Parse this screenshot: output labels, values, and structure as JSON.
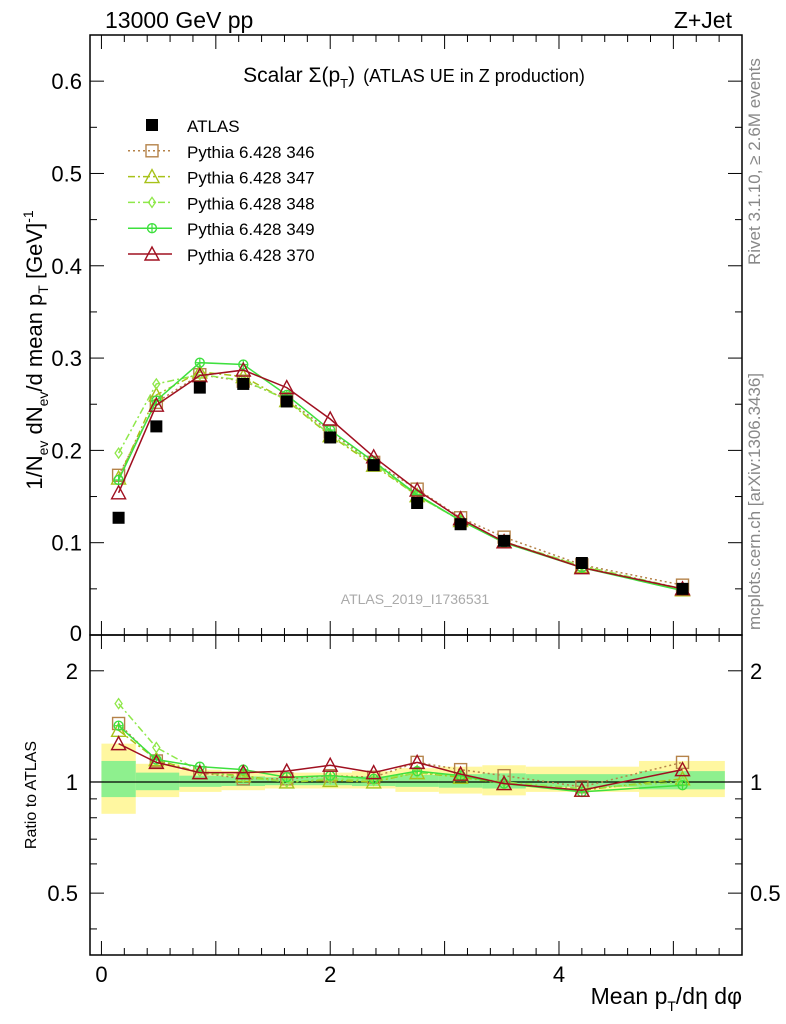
{
  "header": {
    "left": "13000 GeV pp",
    "right": "Z+Jet"
  },
  "side_text": {
    "top": "Rivet 3.1.10, ≥ 2.6M events",
    "bottom": "mcplots.cern.ch [arXiv:1306.3436]"
  },
  "watermark": "ATLAS_2019_I1736531",
  "chart_data": [
    {
      "type": "line",
      "title_main": "Scalar Σ(p",
      "title_sub": "T",
      "title_after": ")",
      "title_tail": "(ATLAS UE in Z production)",
      "ylabel": "1/N_ev dN_ev/d mean p_T [GeV]^-1",
      "ylim": [
        0,
        0.65
      ],
      "yticks": [
        0.1,
        0.2,
        0.3,
        0.4,
        0.5,
        0.6
      ],
      "yticklabels": [
        "0.1",
        "0.2",
        "0.3",
        "0.4",
        "0.5",
        "0.6"
      ],
      "y_zero_label": "0",
      "xlim": [
        -0.1,
        5.6
      ],
      "legend_position": "top-left",
      "x": [
        0.15,
        0.48,
        0.86,
        1.24,
        1.62,
        2.0,
        2.38,
        2.76,
        3.14,
        3.52,
        4.2,
        5.08
      ],
      "data": {
        "name": "ATLAS",
        "values": [
          0.127,
          0.226,
          0.268,
          0.272,
          0.253,
          0.214,
          0.184,
          0.143,
          0.12,
          0.102,
          0.078,
          0.05
        ]
      },
      "series": [
        {
          "name": "Pythia 6.428 346",
          "color": "#b5834a",
          "dash": "2,3",
          "marker": "square",
          "values": [
            0.173,
            0.252,
            0.282,
            0.275,
            0.256,
            0.22,
            0.187,
            0.158,
            0.127,
            0.106,
            0.076,
            0.054
          ]
        },
        {
          "name": "Pythia 6.428 347",
          "color": "#a8c21a",
          "dash": "7,3,2,3",
          "marker": "triangle",
          "values": [
            0.17,
            0.26,
            0.285,
            0.28,
            0.254,
            0.216,
            0.184,
            0.151,
            0.124,
            0.101,
            0.074,
            0.049
          ]
        },
        {
          "name": "Pythia 6.428 348",
          "color": "#8fe84a",
          "dash": "7,3,2,3",
          "marker": "diamond",
          "values": [
            0.197,
            0.272,
            0.282,
            0.276,
            0.255,
            0.217,
            0.186,
            0.151,
            0.124,
            0.101,
            0.075,
            0.05
          ]
        },
        {
          "name": "Pythia 6.428 349",
          "color": "#3ee03e",
          "dash": "",
          "marker": "circleplus",
          "values": [
            0.168,
            0.254,
            0.295,
            0.293,
            0.26,
            0.222,
            0.188,
            0.152,
            0.124,
            0.1,
            0.073,
            0.048
          ]
        },
        {
          "name": "Pythia 6.428 370",
          "color": "#a01020",
          "dash": "",
          "marker": "triangle",
          "values": [
            0.154,
            0.249,
            0.281,
            0.287,
            0.268,
            0.234,
            0.193,
            0.157,
            0.126,
            0.101,
            0.073,
            0.05
          ]
        }
      ]
    },
    {
      "type": "line",
      "ylabel": "Ratio to ATLAS",
      "xlabel": "Mean p_T/dη dφ",
      "xlabel_main": "Mean p",
      "xlabel_sub": "T",
      "xlabel_tail": "/dη dφ",
      "ylim": [
        0.34,
        2.5
      ],
      "yticks": [
        0.5,
        1,
        2
      ],
      "yticklabels": [
        "0.5",
        "1",
        "2"
      ],
      "xlim": [
        -0.1,
        5.6
      ],
      "xticks": [
        0,
        2,
        4
      ],
      "xticklabels": [
        "0",
        "2",
        "4"
      ],
      "x": [
        0.15,
        0.48,
        0.86,
        1.24,
        1.62,
        2.0,
        2.38,
        2.76,
        3.14,
        3.52,
        4.2,
        5.08
      ],
      "band_bins": [
        0,
        0.3,
        0.68,
        1.05,
        1.43,
        1.81,
        2.19,
        2.57,
        2.95,
        3.33,
        3.71,
        4.7,
        5.45
      ],
      "band_yellow": [
        [
          0.82,
          1.27
        ],
        [
          0.91,
          1.12
        ],
        [
          0.94,
          1.08
        ],
        [
          0.95,
          1.07
        ],
        [
          0.96,
          1.06
        ],
        [
          0.96,
          1.06
        ],
        [
          0.96,
          1.07
        ],
        [
          0.94,
          1.09
        ],
        [
          0.93,
          1.1
        ],
        [
          0.92,
          1.11
        ],
        [
          0.94,
          1.1
        ],
        [
          0.91,
          1.14
        ]
      ],
      "band_green": [
        [
          0.91,
          1.14
        ],
        [
          0.95,
          1.06
        ],
        [
          0.97,
          1.04
        ],
        [
          0.975,
          1.035
        ],
        [
          0.98,
          1.03
        ],
        [
          0.98,
          1.03
        ],
        [
          0.975,
          1.035
        ],
        [
          0.97,
          1.045
        ],
        [
          0.965,
          1.05
        ],
        [
          0.96,
          1.055
        ],
        [
          0.97,
          1.05
        ],
        [
          0.955,
          1.07
        ]
      ],
      "series": [
        {
          "name": "Pythia 6.428 346",
          "values": [
            1.44,
            1.14,
            1.06,
            1.02,
            1.02,
            1.04,
            1.03,
            1.13,
            1.08,
            1.04,
            0.97,
            1.13
          ]
        },
        {
          "name": "Pythia 6.428 347",
          "values": [
            1.38,
            1.15,
            1.06,
            1.04,
            1.0,
            1.01,
            1.0,
            1.06,
            1.03,
            0.99,
            0.95,
            1.02
          ]
        },
        {
          "name": "Pythia 6.428 348",
          "values": [
            1.63,
            1.24,
            1.07,
            1.03,
            1.0,
            1.02,
            1.01,
            1.06,
            1.04,
            1.0,
            0.96,
            1.0
          ]
        },
        {
          "name": "Pythia 6.428 349",
          "values": [
            1.42,
            1.15,
            1.1,
            1.08,
            1.03,
            1.04,
            1.02,
            1.07,
            1.04,
            0.99,
            0.94,
            0.98
          ]
        },
        {
          "name": "Pythia 6.428 370",
          "values": [
            1.27,
            1.13,
            1.06,
            1.06,
            1.07,
            1.11,
            1.06,
            1.13,
            1.05,
            0.99,
            0.95,
            1.08
          ]
        }
      ]
    }
  ]
}
